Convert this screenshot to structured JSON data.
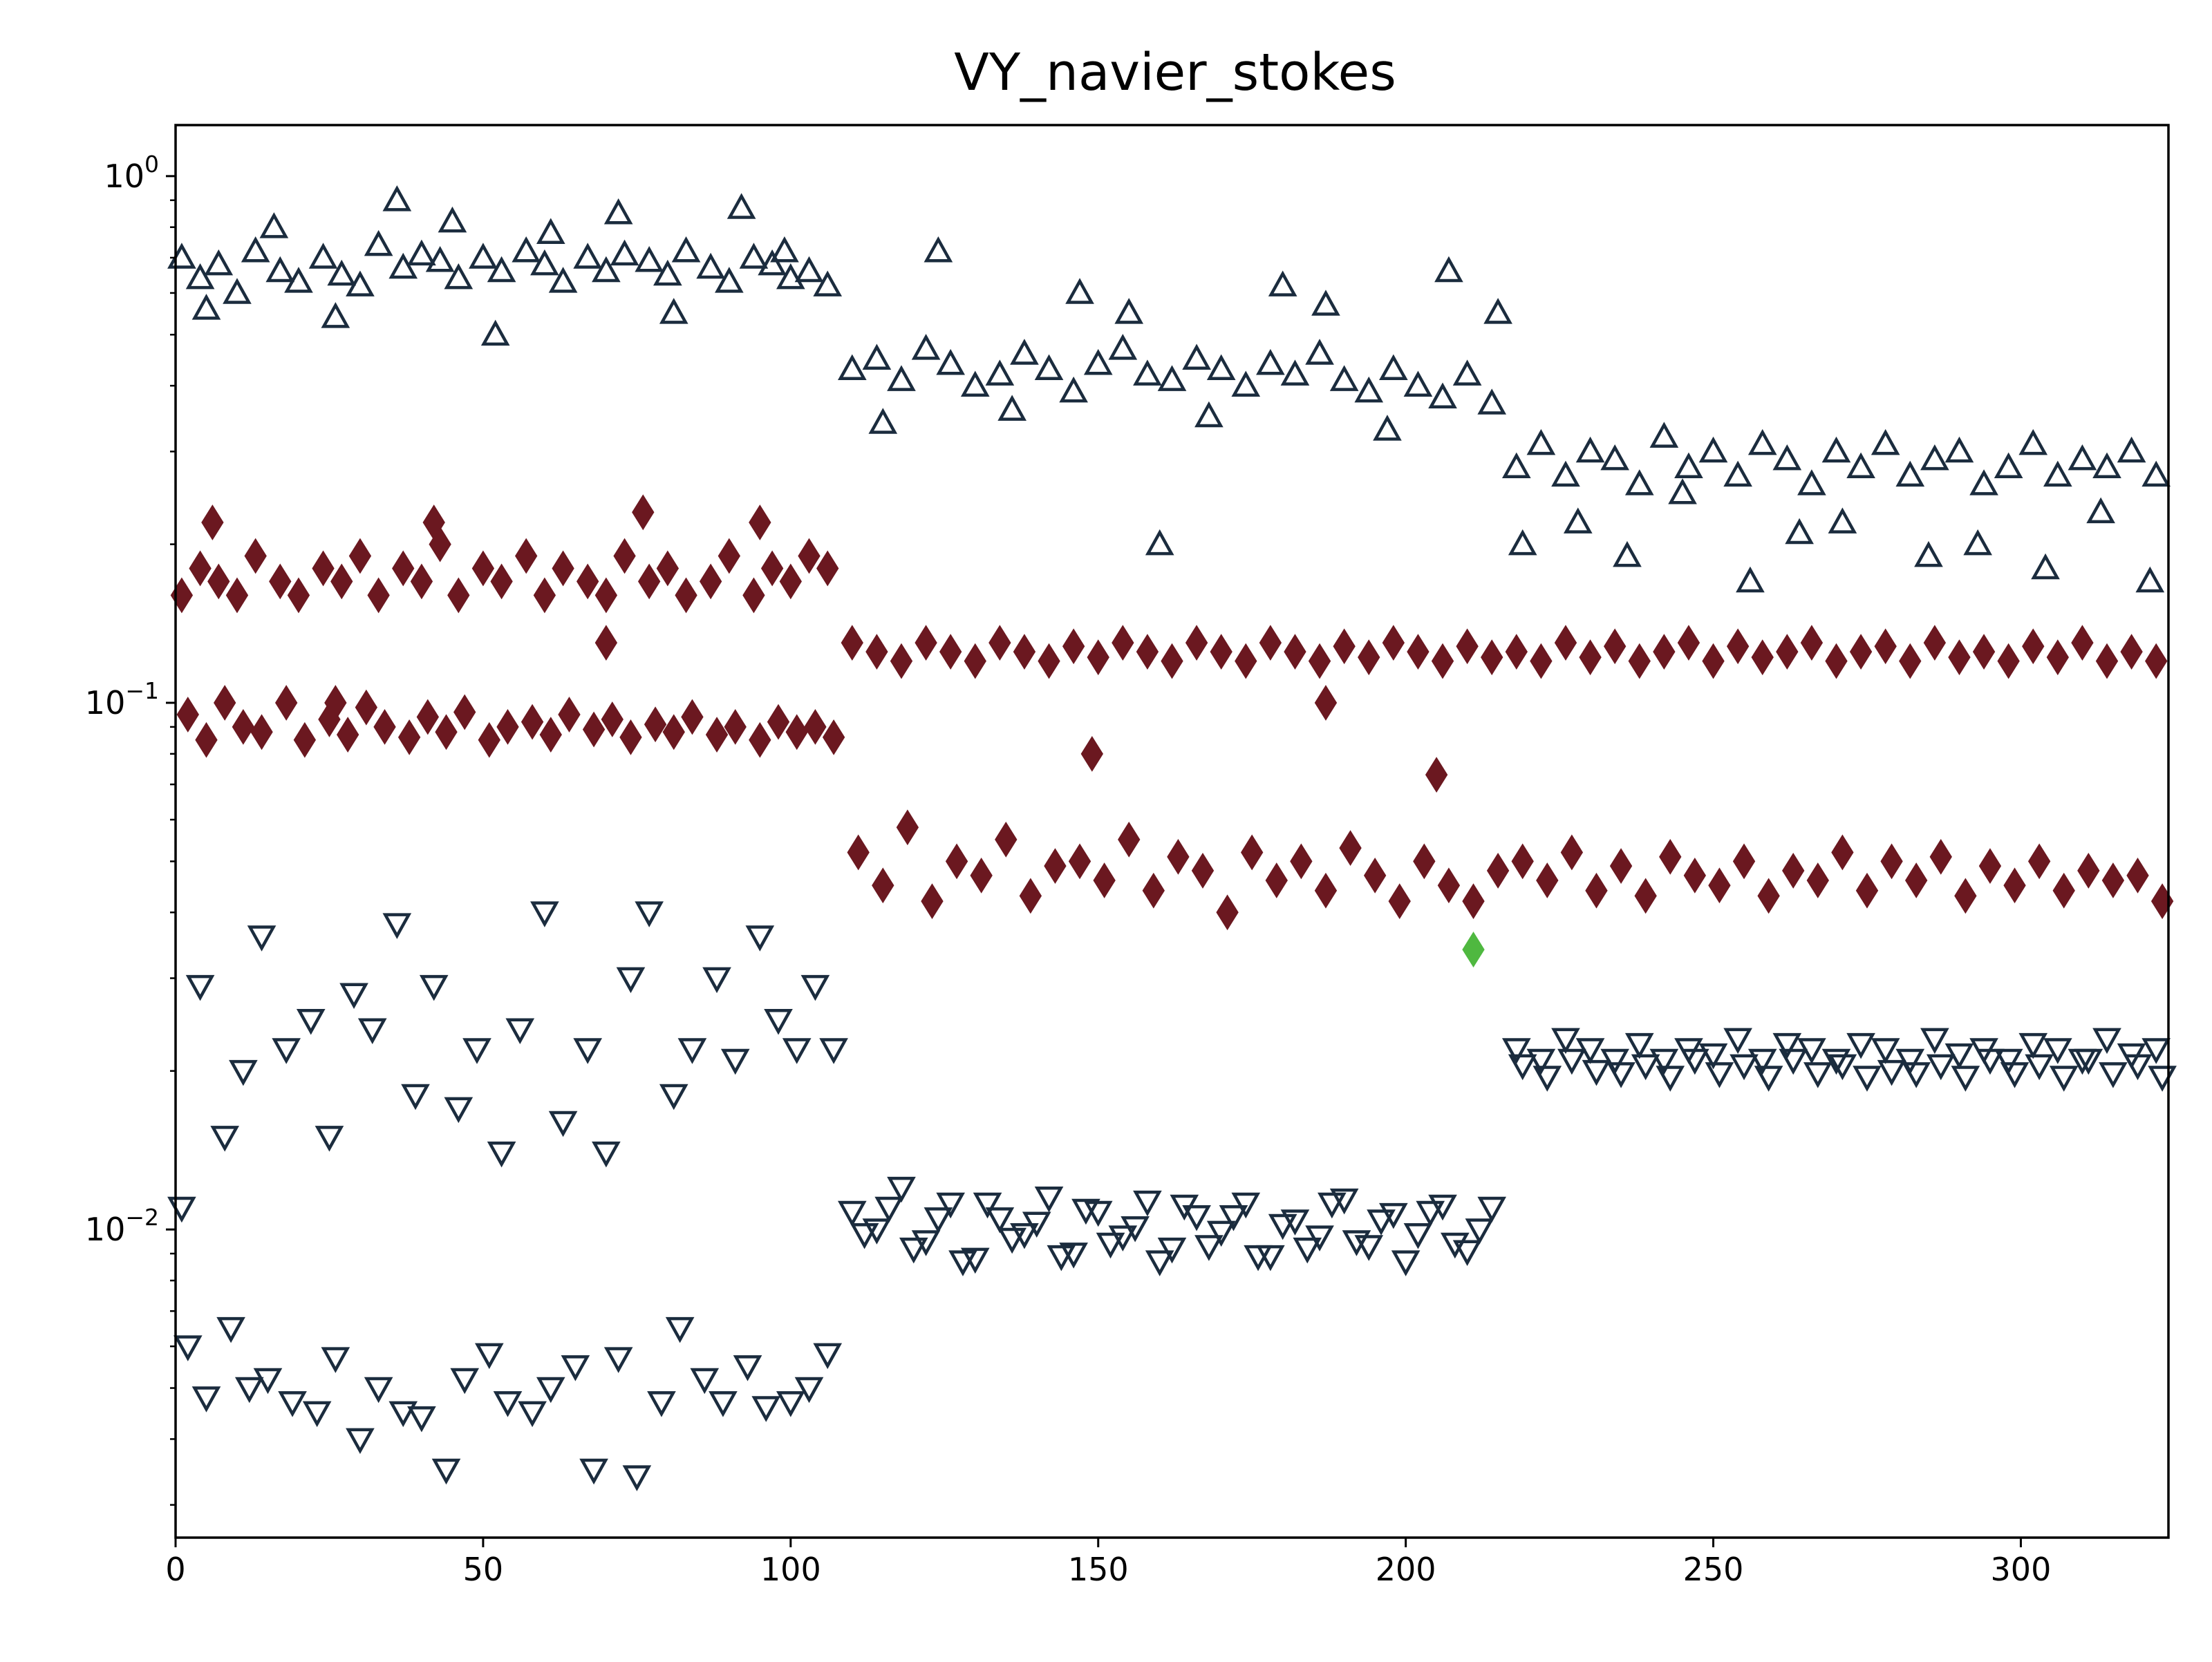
{
  "chart_data": {
    "type": "scatter",
    "title": "VY_navier_stokes",
    "xlabel": "",
    "ylabel": "",
    "xlim": [
      0,
      324
    ],
    "ylim": [
      0.0026,
      1.25
    ],
    "yscale": "log",
    "grid": false,
    "x_ticks": [
      0,
      50,
      100,
      150,
      200,
      250,
      300
    ],
    "y_ticks": [
      {
        "value": 0.01,
        "base": "10",
        "exp": "−2"
      },
      {
        "value": 0.1,
        "base": "10",
        "exp": "−1"
      },
      {
        "value": 1,
        "base": "10",
        "exp": "0"
      }
    ],
    "series": [
      {
        "marker": "triangle-up-open",
        "color": "#1b2c3e",
        "x": [
          1,
          4,
          7,
          10,
          13,
          17,
          20,
          24,
          27,
          30,
          33,
          37,
          40,
          43,
          46,
          50,
          53,
          57,
          60,
          63,
          67,
          70,
          73,
          77,
          80,
          83,
          87,
          90,
          94,
          97,
          100,
          103,
          106,
          110,
          114,
          118,
          122,
          126,
          130,
          134,
          138,
          142,
          146,
          150,
          154,
          158,
          162,
          166,
          170,
          174,
          178,
          182,
          186,
          190,
          194,
          198,
          202,
          206,
          210,
          214,
          218,
          222,
          226,
          230,
          234,
          238,
          242,
          246,
          250,
          254,
          258,
          262,
          266,
          270,
          274,
          278,
          282,
          286,
          290,
          294,
          298,
          302,
          306,
          310,
          314,
          318,
          322,
          5,
          16,
          26,
          36,
          45,
          52,
          61,
          72,
          81,
          92,
          99,
          115,
          124,
          136,
          147,
          155,
          160,
          168,
          180,
          187,
          197,
          207,
          215,
          219,
          228,
          236,
          245,
          256,
          264,
          271,
          285,
          293,
          304,
          313,
          321
        ],
        "y": [
          0.7,
          0.64,
          0.68,
          0.6,
          0.72,
          0.66,
          0.63,
          0.7,
          0.65,
          0.62,
          0.74,
          0.67,
          0.71,
          0.69,
          0.64,
          0.7,
          0.66,
          0.72,
          0.68,
          0.63,
          0.7,
          0.66,
          0.71,
          0.69,
          0.65,
          0.72,
          0.67,
          0.63,
          0.7,
          0.68,
          0.64,
          0.66,
          0.62,
          0.43,
          0.45,
          0.41,
          0.47,
          0.44,
          0.4,
          0.42,
          0.46,
          0.43,
          0.39,
          0.44,
          0.47,
          0.42,
          0.41,
          0.45,
          0.43,
          0.4,
          0.44,
          0.42,
          0.46,
          0.41,
          0.39,
          0.43,
          0.4,
          0.38,
          0.42,
          0.37,
          0.28,
          0.31,
          0.27,
          0.3,
          0.29,
          0.26,
          0.32,
          0.28,
          0.3,
          0.27,
          0.31,
          0.29,
          0.26,
          0.3,
          0.28,
          0.31,
          0.27,
          0.29,
          0.3,
          0.26,
          0.28,
          0.31,
          0.27,
          0.29,
          0.28,
          0.3,
          0.27,
          0.56,
          0.8,
          0.54,
          0.9,
          0.82,
          0.5,
          0.78,
          0.85,
          0.55,
          0.87,
          0.72,
          0.34,
          0.72,
          0.36,
          0.6,
          0.55,
          0.2,
          0.35,
          0.62,
          0.57,
          0.33,
          0.66,
          0.55,
          0.2,
          0.22,
          0.19,
          0.25,
          0.17,
          0.21,
          0.22,
          0.19,
          0.2,
          0.18,
          0.23,
          0.17
        ]
      },
      {
        "marker": "diamond-filled",
        "color": "#6b1820",
        "x": [
          1,
          4,
          7,
          10,
          13,
          17,
          20,
          24,
          27,
          30,
          33,
          37,
          40,
          43,
          46,
          50,
          53,
          57,
          60,
          63,
          67,
          70,
          73,
          77,
          80,
          83,
          87,
          90,
          94,
          97,
          100,
          103,
          106,
          2,
          5,
          8,
          11,
          14,
          18,
          21,
          25,
          28,
          31,
          34,
          38,
          41,
          44,
          47,
          51,
          54,
          58,
          61,
          64,
          68,
          71,
          74,
          78,
          81,
          84,
          88,
          91,
          95,
          98,
          101,
          104,
          107,
          110,
          114,
          118,
          122,
          126,
          130,
          134,
          138,
          142,
          146,
          150,
          154,
          158,
          162,
          166,
          170,
          174,
          178,
          182,
          186,
          190,
          194,
          198,
          202,
          206,
          210,
          214,
          218,
          222,
          226,
          230,
          234,
          238,
          242,
          246,
          250,
          254,
          258,
          262,
          266,
          270,
          274,
          278,
          282,
          286,
          290,
          294,
          298,
          302,
          306,
          310,
          314,
          318,
          322,
          111,
          115,
          119,
          123,
          127,
          131,
          135,
          139,
          143,
          147,
          151,
          155,
          159,
          163,
          167,
          171,
          175,
          179,
          183,
          187,
          191,
          195,
          199,
          203,
          207,
          211,
          215,
          219,
          223,
          227,
          231,
          235,
          239,
          243,
          247,
          251,
          255,
          259,
          263,
          267,
          271,
          275,
          279,
          283,
          287,
          291,
          295,
          299,
          303,
          307,
          311,
          315,
          319,
          323,
          6,
          42,
          76,
          95,
          70,
          26,
          149,
          205,
          187
        ],
        "y": [
          0.16,
          0.18,
          0.17,
          0.16,
          0.19,
          0.17,
          0.16,
          0.18,
          0.17,
          0.19,
          0.16,
          0.18,
          0.17,
          0.2,
          0.16,
          0.18,
          0.17,
          0.19,
          0.16,
          0.18,
          0.17,
          0.16,
          0.19,
          0.17,
          0.18,
          0.16,
          0.17,
          0.19,
          0.16,
          0.18,
          0.17,
          0.19,
          0.18,
          0.095,
          0.085,
          0.1,
          0.09,
          0.088,
          0.1,
          0.085,
          0.093,
          0.087,
          0.098,
          0.09,
          0.086,
          0.094,
          0.088,
          0.096,
          0.085,
          0.09,
          0.092,
          0.087,
          0.095,
          0.089,
          0.093,
          0.086,
          0.091,
          0.088,
          0.094,
          0.087,
          0.09,
          0.085,
          0.092,
          0.088,
          0.09,
          0.086,
          0.13,
          0.125,
          0.12,
          0.13,
          0.125,
          0.12,
          0.13,
          0.125,
          0.12,
          0.128,
          0.122,
          0.13,
          0.125,
          0.12,
          0.13,
          0.125,
          0.12,
          0.13,
          0.125,
          0.12,
          0.128,
          0.122,
          0.13,
          0.125,
          0.12,
          0.128,
          0.122,
          0.125,
          0.12,
          0.13,
          0.122,
          0.128,
          0.12,
          0.125,
          0.13,
          0.12,
          0.128,
          0.122,
          0.125,
          0.13,
          0.12,
          0.125,
          0.128,
          0.12,
          0.13,
          0.122,
          0.125,
          0.12,
          0.128,
          0.122,
          0.13,
          0.12,
          0.125,
          0.12,
          0.052,
          0.045,
          0.058,
          0.042,
          0.05,
          0.047,
          0.055,
          0.043,
          0.049,
          0.05,
          0.046,
          0.055,
          0.044,
          0.051,
          0.048,
          0.04,
          0.052,
          0.046,
          0.05,
          0.044,
          0.053,
          0.047,
          0.042,
          0.05,
          0.045,
          0.042,
          0.048,
          0.05,
          0.046,
          0.052,
          0.044,
          0.049,
          0.043,
          0.051,
          0.047,
          0.045,
          0.05,
          0.043,
          0.048,
          0.046,
          0.052,
          0.044,
          0.05,
          0.046,
          0.051,
          0.043,
          0.049,
          0.045,
          0.05,
          0.044,
          0.048,
          0.046,
          0.047,
          0.042,
          0.22,
          0.22,
          0.23,
          0.22,
          0.13,
          0.1,
          0.08,
          0.073,
          0.1
        ]
      },
      {
        "marker": "triangle-down-open",
        "color": "#1b2c3e",
        "x": [
          1,
          4,
          8,
          11,
          14,
          18,
          22,
          25,
          29,
          32,
          36,
          39,
          42,
          46,
          49,
          53,
          56,
          60,
          63,
          67,
          70,
          74,
          77,
          81,
          84,
          88,
          91,
          95,
          98,
          101,
          104,
          107,
          2,
          5,
          9,
          12,
          15,
          19,
          23,
          26,
          30,
          33,
          37,
          40,
          44,
          47,
          51,
          54,
          58,
          61,
          65,
          68,
          72,
          75,
          79,
          82,
          86,
          89,
          93,
          96,
          100,
          103,
          106,
          110,
          114,
          118,
          122,
          126,
          130,
          134,
          138,
          142,
          146,
          150,
          154,
          158,
          162,
          166,
          170,
          174,
          178,
          182,
          186,
          190,
          194,
          198,
          202,
          206,
          210,
          214,
          112,
          116,
          120,
          124,
          128,
          132,
          136,
          140,
          144,
          148,
          152,
          156,
          160,
          164,
          168,
          172,
          176,
          180,
          184,
          188,
          192,
          196,
          200,
          204,
          208,
          212,
          218,
          222,
          226,
          230,
          234,
          238,
          242,
          246,
          250,
          254,
          258,
          262,
          266,
          270,
          274,
          278,
          282,
          286,
          290,
          294,
          298,
          302,
          306,
          310,
          314,
          318,
          322,
          219,
          223,
          227,
          231,
          235,
          239,
          243,
          247,
          251,
          255,
          259,
          263,
          267,
          271,
          275,
          279,
          283,
          287,
          291,
          295,
          299,
          303,
          307,
          311,
          315,
          319,
          323
        ],
        "y": [
          0.011,
          0.029,
          0.015,
          0.02,
          0.036,
          0.022,
          0.025,
          0.015,
          0.028,
          0.024,
          0.038,
          0.018,
          0.029,
          0.017,
          0.022,
          0.014,
          0.024,
          0.04,
          0.016,
          0.022,
          0.014,
          0.03,
          0.04,
          0.018,
          0.022,
          0.03,
          0.021,
          0.036,
          0.025,
          0.022,
          0.029,
          0.022,
          0.006,
          0.0048,
          0.0065,
          0.005,
          0.0052,
          0.0047,
          0.0045,
          0.0057,
          0.004,
          0.005,
          0.0045,
          0.0044,
          0.0035,
          0.0052,
          0.0058,
          0.0047,
          0.0045,
          0.005,
          0.0055,
          0.0035,
          0.0057,
          0.0034,
          0.0047,
          0.0065,
          0.0052,
          0.0047,
          0.0055,
          0.0046,
          0.0047,
          0.005,
          0.0058,
          0.0108,
          0.01,
          0.012,
          0.0095,
          0.0112,
          0.0088,
          0.0105,
          0.0098,
          0.0115,
          0.009,
          0.0108,
          0.0097,
          0.0113,
          0.0092,
          0.0106,
          0.0099,
          0.0112,
          0.0089,
          0.0104,
          0.0097,
          0.0114,
          0.0093,
          0.0107,
          0.0098,
          0.0111,
          0.0091,
          0.011,
          0.0098,
          0.011,
          0.0092,
          0.0105,
          0.0087,
          0.0112,
          0.0096,
          0.0103,
          0.0089,
          0.0109,
          0.0094,
          0.0101,
          0.0087,
          0.0111,
          0.0093,
          0.0106,
          0.0089,
          0.0102,
          0.0092,
          0.0112,
          0.0095,
          0.0104,
          0.0087,
          0.0108,
          0.0094,
          0.01,
          0.022,
          0.021,
          0.023,
          0.022,
          0.021,
          0.0225,
          0.021,
          0.022,
          0.0215,
          0.023,
          0.021,
          0.0225,
          0.022,
          0.021,
          0.0225,
          0.022,
          0.021,
          0.023,
          0.0215,
          0.022,
          0.021,
          0.0225,
          0.022,
          0.021,
          0.023,
          0.0215,
          0.022,
          0.0205,
          0.0195,
          0.021,
          0.02,
          0.0198,
          0.0205,
          0.0195,
          0.021,
          0.0198,
          0.0205,
          0.0195,
          0.021,
          0.0198,
          0.0205,
          0.0195,
          0.02,
          0.0198,
          0.0205,
          0.0195,
          0.021,
          0.0198,
          0.0205,
          0.0195,
          0.021,
          0.0198,
          0.0205,
          0.0195
        ]
      },
      {
        "marker": "diamond-filled",
        "color": "#4fb840",
        "x": [
          211
        ],
        "y": [
          0.034
        ]
      }
    ]
  }
}
